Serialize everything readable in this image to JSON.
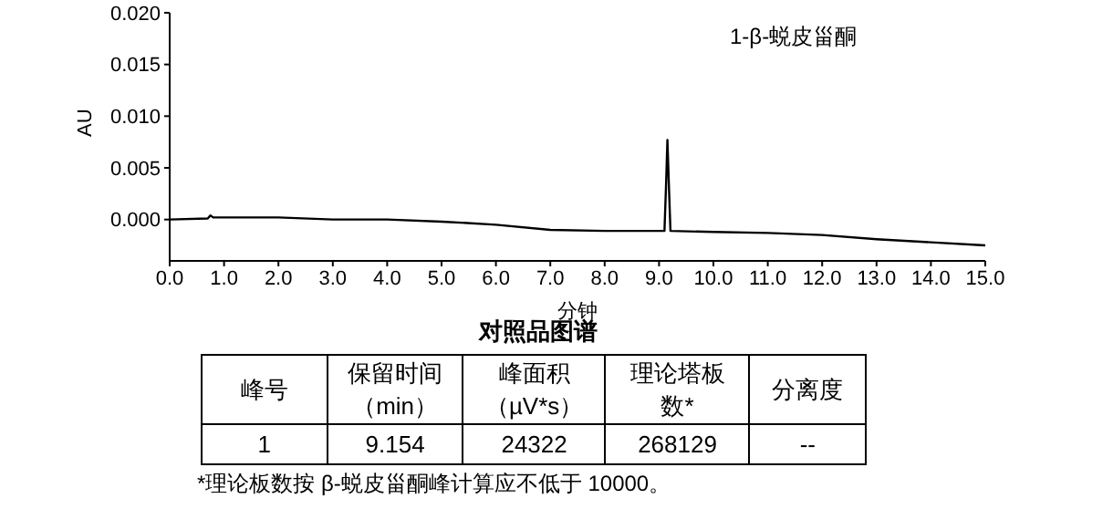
{
  "chart_data": {
    "type": "line",
    "title": "对照品图谱",
    "xlabel": "分钟",
    "ylabel": "AU",
    "x": [
      0,
      0.7,
      0.75,
      0.8,
      2,
      3,
      4,
      5,
      6,
      7,
      8,
      9.1,
      9.13,
      9.154,
      9.18,
      9.21,
      10,
      11,
      12,
      13,
      14,
      15
    ],
    "series": [
      {
        "color": "#000000",
        "values": [
          0,
          0.0001,
          0.0004,
          0.0002,
          0.0002,
          0,
          0,
          -0.0002,
          -0.0005,
          -0.001,
          -0.0011,
          -0.0011,
          0.0035,
          0.0077,
          0.0035,
          -0.0011,
          -0.0012,
          -0.0013,
          -0.0015,
          -0.0019,
          -0.0022,
          -0.0025
        ]
      }
    ],
    "xlim": [
      0,
      15
    ],
    "xticks": [
      {
        "value": 0,
        "label": "0.0"
      },
      {
        "value": 1,
        "label": "1.0"
      },
      {
        "value": 2,
        "label": "2.0"
      },
      {
        "value": 3,
        "label": "3.0"
      },
      {
        "value": 4,
        "label": "4.0"
      },
      {
        "value": 5,
        "label": "5.0"
      },
      {
        "value": 6,
        "label": "6.0"
      },
      {
        "value": 7,
        "label": "7.0"
      },
      {
        "value": 8,
        "label": "8.0"
      },
      {
        "value": 9,
        "label": "9.0"
      },
      {
        "value": 10,
        "label": "10.0"
      },
      {
        "value": 11,
        "label": "11.0"
      },
      {
        "value": 12,
        "label": "12.0"
      },
      {
        "value": 13,
        "label": "13.0"
      },
      {
        "value": 14,
        "label": "14.0"
      },
      {
        "value": 15,
        "label": "15.0"
      }
    ],
    "ylim": [
      -0.004,
      0.02
    ],
    "yticks": [
      {
        "value": 0,
        "label": "0.000"
      },
      {
        "value": 0.005,
        "label": "0.005"
      },
      {
        "value": 0.01,
        "label": "0.010"
      },
      {
        "value": 0.015,
        "label": "0.015"
      },
      {
        "value": 0.02,
        "label": "0.020"
      }
    ],
    "grid": false,
    "legend": false,
    "marker": "none",
    "line_style": "solid",
    "annotations": [
      "1-β-蜕皮甾酮",
      "峰号",
      "保留时间（min）",
      "峰面积（µV*s）",
      "理论塔板数*",
      "分离度",
      "1",
      "9.154",
      "24322",
      "268129",
      "--",
      "*理论板数按 β-蜕皮甾酮峰计算应不低于 10000。"
    ]
  }
}
